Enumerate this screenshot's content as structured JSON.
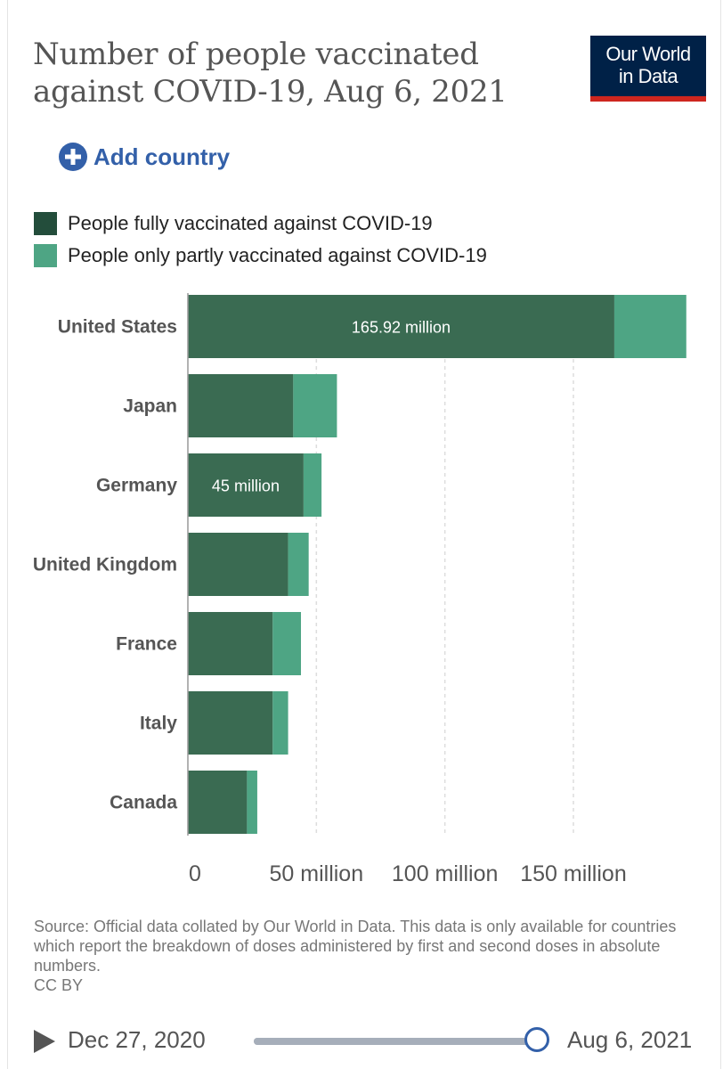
{
  "title": "Number of people vaccinated against COVID-19, Aug 6, 2021",
  "logo": {
    "line1": "Our World",
    "line2": "in Data"
  },
  "add_country": {
    "label": "Add country",
    "icon": "plus-circle-icon"
  },
  "colors": {
    "fully": "#3a6b52",
    "partly": "#4ea584",
    "legend_fully": "#234d3b",
    "accent": "#3360a9",
    "logo_bg": "#002147",
    "logo_bar": "#ce261e"
  },
  "legend": [
    {
      "label": "People fully vaccinated against COVID-19",
      "series": "fully"
    },
    {
      "label": "People only partly vaccinated against COVID-19",
      "series": "partly"
    }
  ],
  "chart_data": {
    "type": "bar",
    "orientation": "horizontal",
    "stacked": true,
    "categories": [
      "United States",
      "Japan",
      "Germany",
      "United Kingdom",
      "France",
      "Italy",
      "Canada"
    ],
    "series": [
      {
        "name": "People fully vaccinated against COVID-19",
        "values": [
          165.92,
          41,
          45,
          39,
          33,
          33,
          23
        ]
      },
      {
        "name": "People only partly vaccinated against COVID-19",
        "values": [
          28,
          17,
          7,
          8,
          11,
          6,
          4
        ]
      }
    ],
    "data_labels": [
      {
        "category": "United States",
        "text": "165.92 million"
      },
      {
        "category": "Germany",
        "text": "45 million"
      }
    ],
    "xticks": [
      0,
      50,
      100,
      150
    ],
    "xtick_labels": [
      "0",
      "50 million",
      "100 million",
      "150 million"
    ],
    "xlim": [
      0,
      194
    ],
    "unit": "million",
    "grid": "vertical dashed"
  },
  "source": {
    "text": "Source: Official data collated by Our World in Data. This data is only available for countries which report the breakdown of doses administered by first and second doses in absolute numbers.",
    "license": "CC BY"
  },
  "timeline": {
    "start": "Dec 27, 2020",
    "end": "Aug 6, 2021",
    "position": 1.0
  }
}
